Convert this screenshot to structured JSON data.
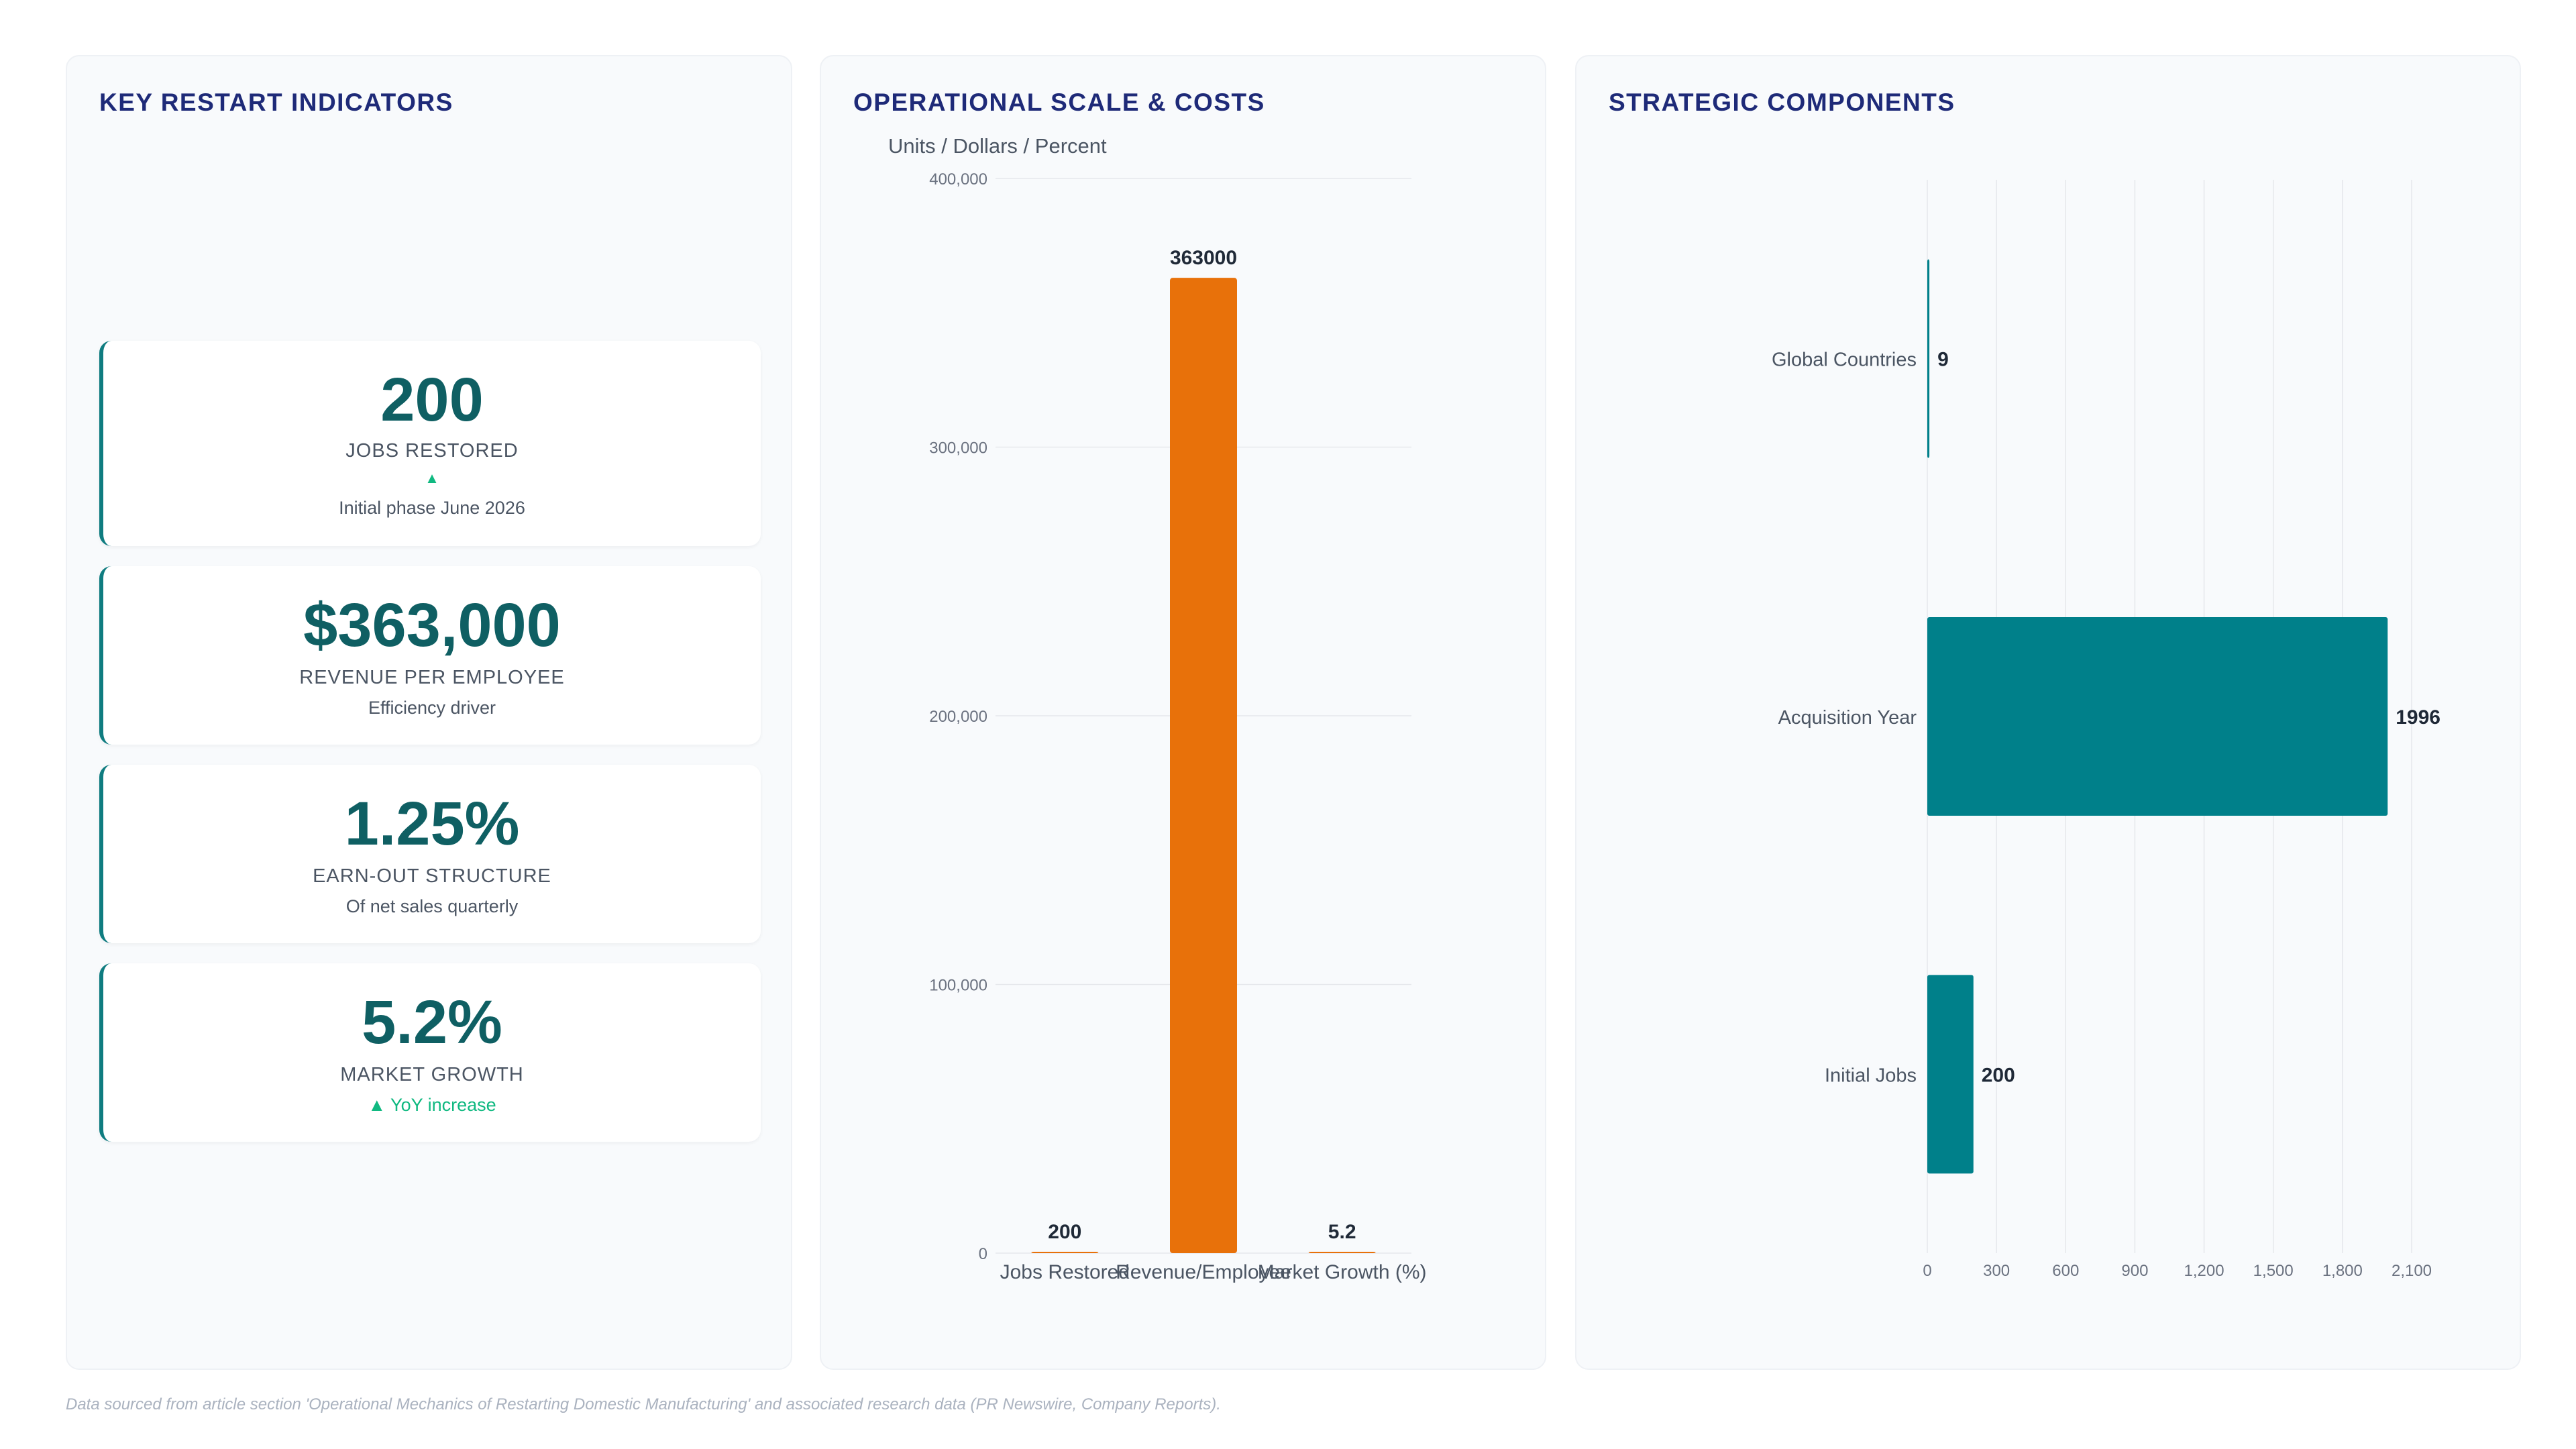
{
  "kpi_panel": {
    "title": "KEY RESTART INDICATORS",
    "cards": [
      {
        "value": "200",
        "label": "JOBS RESTORED",
        "arrow": "▲",
        "sub": "Initial phase June 2026"
      },
      {
        "value": "$363,000",
        "label": "REVENUE PER EMPLOYEE",
        "sub": "Efficiency driver"
      },
      {
        "value": "1.25%",
        "label": "EARN-OUT STRUCTURE",
        "sub": "Of net sales quarterly"
      },
      {
        "value": "5.2%",
        "label": "MARKET GROWTH",
        "sub": "▲ YoY increase"
      }
    ]
  },
  "ops_panel": {
    "title": "OPERATIONAL SCALE & COSTS"
  },
  "strat_panel": {
    "title": "STRATEGIC COMPONENTS"
  },
  "footnote": "Data sourced from article section 'Operational Mechanics of Restarting Domestic Manufacturing' and associated research data (PR Newswire, Company Reports).",
  "colors": {
    "orange": "#e8710a",
    "teal": "#00808a",
    "title": "#1e2a78",
    "kpi_value": "#0f5f63",
    "accent_green": "#10b981"
  },
  "chart_data": [
    {
      "type": "bar",
      "orientation": "vertical",
      "title": "",
      "ylabel": "Units / Dollars / Percent",
      "xlabel": "",
      "categories": [
        "Jobs Restored",
        "Revenue/Employee",
        "Market Growth (%)"
      ],
      "values": [
        200,
        363000,
        5.2
      ],
      "data_labels": [
        "200",
        "363000",
        "5.2"
      ],
      "ylim": [
        0,
        400000
      ],
      "yticks": [
        0,
        100000,
        200000,
        300000,
        400000
      ],
      "ytick_labels": [
        "0",
        "100,000",
        "200,000",
        "300,000",
        "400,000"
      ],
      "grid": true,
      "color": "#e8710a"
    },
    {
      "type": "bar",
      "orientation": "horizontal",
      "title": "",
      "categories": [
        "Global Countries",
        "Acquisition Year",
        "Initial Jobs"
      ],
      "values": [
        9,
        1996,
        200
      ],
      "data_labels": [
        "9",
        "1996",
        "200"
      ],
      "xlim": [
        0,
        2100
      ],
      "xticks": [
        0,
        300,
        600,
        900,
        1200,
        1500,
        1800,
        2100
      ],
      "xtick_labels": [
        "0",
        "300",
        "600",
        "900",
        "1,200",
        "1,500",
        "1,800",
        "2,100"
      ],
      "grid": true,
      "color": "#00808a"
    }
  ]
}
